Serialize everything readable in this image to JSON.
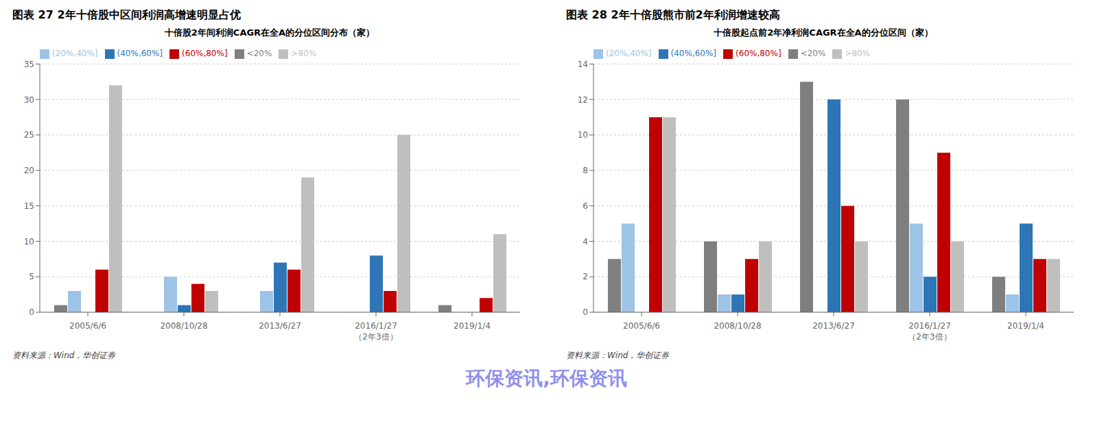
{
  "chart_data": [
    {
      "type": "bar",
      "title": "图表 27   2年十倍股中区间利润高增速明显占优",
      "subtitle": "十倍股2年间利润CAGR在全A的分位区间分布（家）",
      "categories": [
        "2005/6/6",
        "2008/10/28",
        "2013/6/27",
        "2016/1/27\n（2年3倍）",
        "2019/1/4"
      ],
      "series": [
        {
          "name": "<20%",
          "color": "#7F7F7F",
          "values": [
            1,
            0,
            0,
            0,
            1
          ]
        },
        {
          "name": "(20%,40%]",
          "color": "#9DC3E6",
          "values": [
            3,
            5,
            3,
            0,
            0
          ]
        },
        {
          "name": "(40%,60%]",
          "color": "#2E75B6",
          "values": [
            0,
            1,
            7,
            8,
            0
          ]
        },
        {
          "name": "(60%,80%]",
          "color": "#C00000",
          "values": [
            6,
            4,
            6,
            3,
            2
          ]
        },
        {
          "name": ">80%",
          "color": "#BFBFBF",
          "values": [
            32,
            3,
            19,
            25,
            11
          ]
        }
      ],
      "ylim": [
        0,
        35
      ],
      "yticks": [
        0,
        5,
        10,
        15,
        20,
        25,
        30,
        35
      ],
      "grid": true,
      "legend": "top",
      "annotations": [
        "资料来源：Wind，华创证券"
      ]
    },
    {
      "type": "bar",
      "title": "图表 28   2年十倍股熊市前2年利润增速较高",
      "subtitle": "十倍股起点前2年净利润CAGR在全A的分位区间（家）",
      "categories": [
        "2005/6/6",
        "2008/10/28",
        "2013/6/27",
        "2016/1/27\n（2年3倍）",
        "2019/1/4"
      ],
      "series": [
        {
          "name": "<20%",
          "color": "#7F7F7F",
          "values": [
            3,
            4,
            13,
            12,
            2
          ]
        },
        {
          "name": "(20%,40%]",
          "color": "#9DC3E6",
          "values": [
            5,
            1,
            0,
            5,
            1
          ]
        },
        {
          "name": "(40%,60%]",
          "color": "#2E75B6",
          "values": [
            0,
            1,
            12,
            2,
            5
          ]
        },
        {
          "name": "(60%,80%]",
          "color": "#C00000",
          "values": [
            11,
            3,
            6,
            9,
            3
          ]
        },
        {
          "name": ">80%",
          "color": "#BFBFBF",
          "values": [
            11,
            4,
            4,
            4,
            3
          ]
        }
      ],
      "ylim": [
        0,
        14
      ],
      "yticks": [
        0,
        2,
        4,
        6,
        8,
        10,
        12,
        14
      ],
      "grid": true,
      "legend": "top",
      "annotations": [
        "资料来源：Wind，华创证券"
      ]
    }
  ],
  "annotations": [
    "环保资讯,环保资讯"
  ]
}
